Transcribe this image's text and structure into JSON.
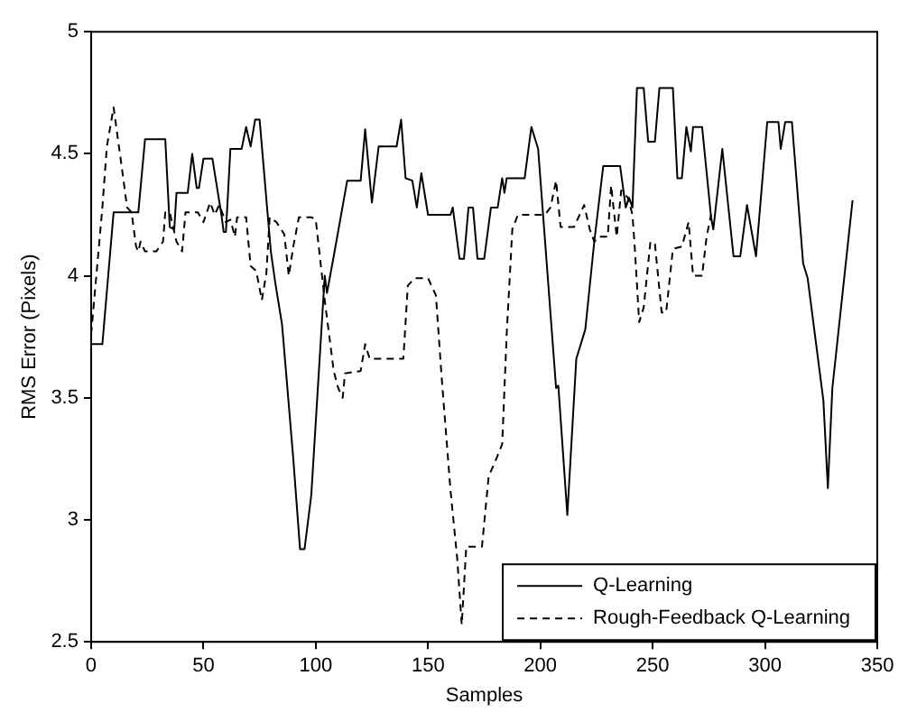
{
  "chart_data": {
    "type": "line",
    "xlabel": "Samples",
    "ylabel": "RMS Error (Pixels)",
    "xlim": [
      0,
      350
    ],
    "xticks": [
      0,
      50,
      100,
      150,
      200,
      250,
      300,
      350
    ],
    "ylim": [
      2.5,
      5
    ],
    "yticks": [
      2.5,
      3,
      3.5,
      4,
      4.5,
      5
    ],
    "grid": false,
    "legend": "bottom right",
    "marker": "none",
    "series": [
      {
        "name": "Q-Learning",
        "color": "#000000",
        "line_style": "solid",
        "x": [
          0,
          5,
          10,
          21,
          24,
          33,
          35,
          37,
          38,
          43,
          45,
          47,
          48,
          50,
          54,
          58,
          59,
          60,
          62,
          67,
          69,
          71,
          73,
          75,
          80,
          82,
          85,
          90,
          93,
          95,
          98,
          102,
          104,
          105,
          108,
          114,
          120,
          122,
          125,
          128,
          136,
          138,
          140,
          143,
          145,
          147,
          150,
          160,
          161,
          164,
          166,
          168,
          170,
          172,
          175,
          178,
          181,
          183,
          184,
          185,
          193,
          196,
          199,
          207,
          208,
          212,
          216,
          220,
          224,
          228,
          235.5,
          238,
          239.5,
          241,
          243,
          246,
          248,
          251,
          253,
          259,
          261,
          263,
          265,
          267,
          268,
          272,
          276,
          277,
          281,
          286,
          289,
          292,
          296,
          301,
          306,
          307,
          309,
          312,
          317,
          319,
          326,
          328,
          330,
          339
        ],
        "values": [
          3.72,
          3.72,
          4.26,
          4.26,
          4.56,
          4.56,
          4.2,
          4.19,
          4.34,
          4.34,
          4.5,
          4.36,
          4.36,
          4.48,
          4.48,
          4.25,
          4.18,
          4.18,
          4.52,
          4.52,
          4.61,
          4.53,
          4.64,
          4.64,
          4.1,
          3.97,
          3.8,
          3.25,
          2.88,
          2.88,
          3.1,
          3.7,
          4.0,
          3.93,
          4.08,
          4.39,
          4.39,
          4.6,
          4.3,
          4.53,
          4.53,
          4.64,
          4.4,
          4.39,
          4.28,
          4.42,
          4.25,
          4.25,
          4.28,
          4.07,
          4.07,
          4.28,
          4.28,
          4.07,
          4.07,
          4.28,
          4.28,
          4.4,
          4.34,
          4.4,
          4.4,
          4.61,
          4.52,
          3.54,
          3.55,
          3.02,
          3.66,
          3.78,
          4.14,
          4.45,
          4.45,
          4.28,
          4.32,
          4.28,
          4.77,
          4.77,
          4.55,
          4.55,
          4.77,
          4.77,
          4.4,
          4.4,
          4.61,
          4.51,
          4.61,
          4.61,
          4.24,
          4.19,
          4.52,
          4.08,
          4.08,
          4.29,
          4.08,
          4.63,
          4.63,
          4.52,
          4.63,
          4.63,
          4.05,
          3.99,
          3.49,
          3.13,
          3.54,
          4.31
        ]
      },
      {
        "name": "Rough-Feedback Q-Learning",
        "color": "#000000",
        "line_style": "dashed",
        "x": [
          0,
          5,
          7,
          10,
          14,
          16,
          18,
          20,
          21,
          22,
          24,
          29,
          32,
          33,
          35,
          38,
          40.5,
          42,
          47.5,
          50,
          53,
          55,
          57,
          60,
          62,
          64,
          65,
          69,
          71,
          73.5,
          76,
          78,
          79.5,
          82.5,
          86,
          88,
          90,
          92.5,
          98,
          100,
          104,
          108,
          110,
          112,
          113,
          120,
          122,
          124,
          139,
          141,
          144,
          150,
          153.5,
          156,
          160,
          163,
          165,
          167,
          174,
          177,
          179.5,
          183,
          185,
          187.5,
          190,
          202,
          204.5,
          207,
          209,
          215,
          217.5,
          219.5,
          222,
          224,
          226,
          230,
          231.5,
          234,
          236,
          239,
          241,
          242,
          244,
          246,
          249,
          251,
          254,
          256,
          259,
          263,
          266,
          268,
          272,
          274,
          276
        ],
        "values": [
          3.76,
          4.28,
          4.53,
          4.69,
          4.42,
          4.28,
          4.26,
          4.12,
          4.1,
          4.14,
          4.1,
          4.1,
          4.14,
          4.26,
          4.26,
          4.14,
          4.1,
          4.26,
          4.26,
          4.22,
          4.3,
          4.25,
          4.29,
          4.22,
          4.23,
          4.16,
          4.24,
          4.24,
          4.04,
          4.02,
          3.9,
          4.01,
          4.24,
          4.22,
          4.17,
          4.0,
          4.12,
          4.24,
          4.24,
          4.23,
          3.9,
          3.61,
          3.54,
          3.5,
          3.6,
          3.61,
          3.72,
          3.66,
          3.66,
          3.96,
          3.99,
          3.99,
          3.92,
          3.59,
          3.12,
          2.84,
          2.57,
          2.89,
          2.89,
          3.18,
          3.23,
          3.31,
          3.76,
          4.19,
          4.25,
          4.25,
          4.28,
          4.39,
          4.2,
          4.2,
          4.25,
          4.29,
          4.19,
          4.14,
          4.16,
          4.16,
          4.37,
          4.16,
          4.35,
          4.32,
          4.25,
          4.12,
          3.81,
          3.87,
          4.14,
          4.13,
          3.85,
          3.85,
          4.11,
          4.12,
          4.22,
          4.0,
          4.0,
          4.16,
          4.25
        ]
      }
    ]
  }
}
